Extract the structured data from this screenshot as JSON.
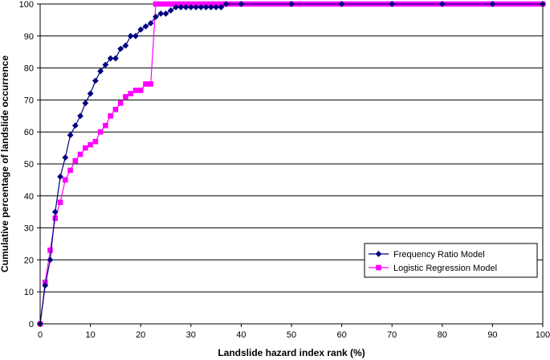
{
  "chart_data": {
    "type": "line",
    "xlabel": "Landslide hazard index rank (%)",
    "ylabel": "Cumulative percentage of landslide occurrence",
    "xlim": [
      0,
      100
    ],
    "ylim": [
      0,
      100
    ],
    "x_ticks": [
      0,
      10,
      20,
      30,
      40,
      50,
      60,
      70,
      80,
      90,
      100
    ],
    "y_ticks": [
      0,
      10,
      20,
      30,
      40,
      50,
      60,
      70,
      80,
      90,
      100
    ],
    "grid": "horizontal",
    "legend_position": "bottom-right",
    "series": [
      {
        "name": "Frequency Ratio Model",
        "color": "#00007F",
        "marker": "diamond",
        "x": [
          0,
          1,
          2,
          3,
          4,
          5,
          6,
          7,
          8,
          9,
          10,
          11,
          12,
          13,
          14,
          15,
          16,
          17,
          18,
          19,
          20,
          21,
          22,
          23,
          24,
          25,
          26,
          27,
          28,
          29,
          30,
          31,
          32,
          33,
          34,
          35,
          36,
          37,
          40,
          50,
          60,
          70,
          80,
          90,
          100
        ],
        "y": [
          0,
          12,
          20,
          35,
          46,
          52,
          59,
          62,
          65,
          69,
          72,
          76,
          79,
          81,
          83,
          83,
          86,
          87,
          90,
          90,
          92,
          93,
          94,
          96,
          97,
          97,
          98,
          99,
          99,
          99,
          99,
          99,
          99,
          99,
          99,
          99,
          99,
          100,
          100,
          100,
          100,
          100,
          100,
          100,
          100
        ]
      },
      {
        "name": "Logistic Regression Model",
        "color": "#FF00FF",
        "marker": "square",
        "x": [
          0,
          1,
          2,
          3,
          4,
          5,
          6,
          7,
          8,
          9,
          10,
          11,
          12,
          13,
          14,
          15,
          16,
          17,
          18,
          19,
          20,
          21,
          22,
          23,
          24,
          25,
          26,
          27,
          28,
          29,
          30,
          31,
          32,
          33,
          34,
          35,
          36,
          37,
          38,
          39,
          40,
          41,
          42,
          43,
          44,
          45,
          46,
          47,
          48,
          49,
          50,
          51,
          52,
          53,
          54,
          55,
          56,
          57,
          58,
          59,
          60,
          61,
          62,
          63,
          64,
          65,
          66,
          67,
          68,
          69,
          70,
          71,
          72,
          73,
          74,
          75,
          76,
          77,
          78,
          79,
          80,
          81,
          82,
          83,
          84,
          85,
          86,
          87,
          88,
          89,
          90,
          91,
          92,
          93,
          94,
          95,
          96,
          97,
          98,
          99,
          100
        ],
        "y": [
          0,
          13,
          23,
          33,
          38,
          45,
          48,
          51,
          53,
          55,
          56,
          57,
          60,
          62,
          65,
          67,
          69,
          71,
          72,
          73,
          73,
          75,
          75,
          100,
          100,
          100,
          100,
          100,
          100,
          100,
          100,
          100,
          100,
          100,
          100,
          100,
          100,
          100,
          100,
          100,
          100,
          100,
          100,
          100,
          100,
          100,
          100,
          100,
          100,
          100,
          100,
          100,
          100,
          100,
          100,
          100,
          100,
          100,
          100,
          100,
          100,
          100,
          100,
          100,
          100,
          100,
          100,
          100,
          100,
          100,
          100,
          100,
          100,
          100,
          100,
          100,
          100,
          100,
          100,
          100,
          100,
          100,
          100,
          100,
          100,
          100,
          100,
          100,
          100,
          100,
          100,
          100,
          100,
          100,
          100,
          100,
          100,
          100,
          100,
          100,
          100
        ]
      }
    ]
  }
}
